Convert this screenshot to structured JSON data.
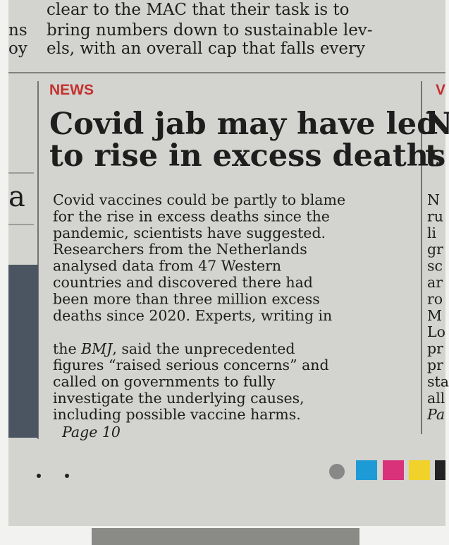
{
  "top_column": {
    "lines": [
      "clear to the MAC that their task is to",
      "bring numbers down to sustainable lev-",
      "els, with an overall cap that falls every"
    ]
  },
  "left_fragments": {
    "top": [
      "ns",
      "oy"
    ],
    "letter": "a"
  },
  "article": {
    "section": "NEWS",
    "headline": [
      "Covid jab may have led",
      "to rise in excess deaths"
    ],
    "body_start": [
      "Covid vaccines could be partly to blame",
      "for the rise in excess deaths since the",
      "pandemic, scientists have suggested.",
      "Researchers from the Netherlands",
      "analysed data from 47 Western",
      "countries and discovered there had",
      "been more than three million excess",
      "deaths since 2020. Experts, writing in"
    ],
    "bmj_line": {
      "pre": "the ",
      "italic": "BMJ",
      "post": ", said the unprecedented"
    },
    "body_end": [
      "figures “raised serious concerns” and",
      "called on governments to fully",
      "investigate the underlying causes,",
      "including possible vaccine harms."
    ],
    "page_ref": "Page 10"
  },
  "right_fragments": {
    "section": "V",
    "headline": [
      "N",
      "t"
    ],
    "body": [
      "N",
      "ru",
      "li",
      "gr",
      "sc",
      "ar",
      "ro",
      "M",
      "Lo",
      "pr",
      "pr",
      "sta",
      "all",
      "Pa"
    ]
  }
}
